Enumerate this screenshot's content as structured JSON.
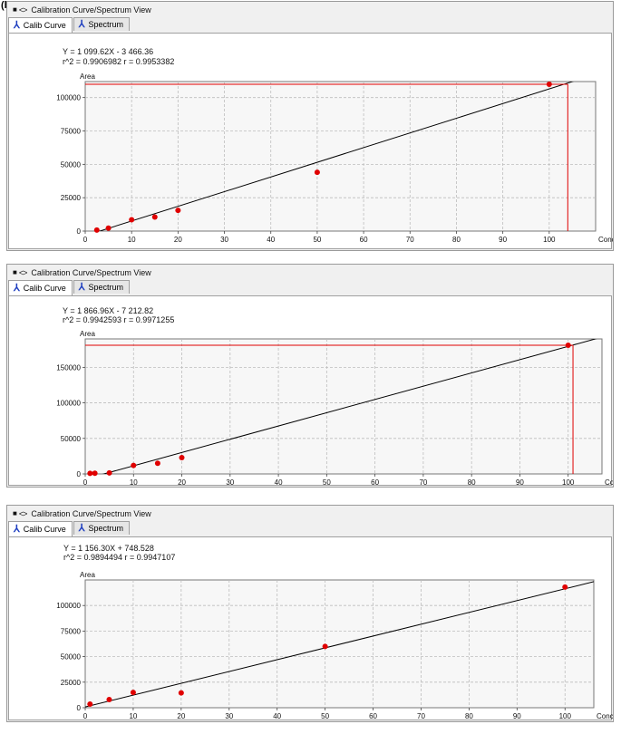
{
  "figure_label": "(b)",
  "panels": [
    {
      "window_title": "Calibration Curve/Spectrum View",
      "tabs": [
        {
          "label": "Calib Curve",
          "icon": "peak-icon",
          "active": true
        },
        {
          "label": "Spectrum",
          "icon": "peak-icon",
          "active": false
        }
      ],
      "equation": "Y = 1 099.62X - 3 466.36",
      "correlation": "r^2 = 0.9906982  r = 0.9953382",
      "chart_data": {
        "type": "scatter",
        "ylabel": "Area",
        "xlabel": "Conc.",
        "xlim": [
          0,
          110
        ],
        "ylim": [
          0,
          112000
        ],
        "xticks": [
          0,
          10,
          20,
          30,
          40,
          50,
          60,
          70,
          80,
          90,
          100
        ],
        "xtick_labels": [
          "0",
          "10",
          "20",
          "30",
          "40",
          "50",
          "60",
          "70",
          "80",
          "90",
          "100"
        ],
        "yticks": [
          0,
          25000,
          50000,
          75000,
          100000
        ],
        "ytick_labels": [
          "0",
          "25000",
          "50000",
          "75000",
          "100000"
        ],
        "points": [
          [
            2.5,
            800
          ],
          [
            5,
            2200
          ],
          [
            10,
            8500
          ],
          [
            15,
            10500
          ],
          [
            20,
            15500
          ],
          [
            50,
            44000
          ],
          [
            100,
            110000
          ]
        ],
        "line": [
          [
            0,
            -3466.36
          ],
          [
            110,
            117492
          ]
        ],
        "marker": {
          "x": 104,
          "y": 110000
        },
        "colors": {
          "points": "#e00000",
          "line": "#000000",
          "marker": "#e00000",
          "grid": "#bdbdbd"
        },
        "grid": true
      }
    },
    {
      "window_title": "Calibration Curve/Spectrum View",
      "tabs": [
        {
          "label": "Calib Curve",
          "icon": "peak-icon",
          "active": true
        },
        {
          "label": "Spectrum",
          "icon": "peak-icon",
          "active": false
        }
      ],
      "equation": "Y = 1 866.96X - 7 212.82",
      "correlation": "r^2 = 0.9942593  r = 0.9971255",
      "chart_data": {
        "type": "scatter",
        "ylabel": "Area",
        "xlabel": "Conc.",
        "xlim": [
          0,
          107
        ],
        "ylim": [
          0,
          190000
        ],
        "xticks": [
          0,
          10,
          20,
          30,
          40,
          50,
          60,
          70,
          80,
          90,
          100
        ],
        "xtick_labels": [
          "0",
          "10",
          "20",
          "30",
          "40",
          "50",
          "60",
          "70",
          "80",
          "90",
          "100"
        ],
        "yticks": [
          0,
          50000,
          100000,
          150000
        ],
        "ytick_labels": [
          "0",
          "50000",
          "100000",
          "150000"
        ],
        "points": [
          [
            1,
            800
          ],
          [
            2,
            1000
          ],
          [
            5,
            1500
          ],
          [
            10,
            12000
          ],
          [
            15,
            15000
          ],
          [
            20,
            23000
          ],
          [
            100,
            181000
          ]
        ],
        "line": [
          [
            0,
            -7212.82
          ],
          [
            107,
            192553
          ]
        ],
        "marker": {
          "x": 101,
          "y": 181000
        },
        "colors": {
          "points": "#e00000",
          "line": "#000000",
          "marker": "#e00000",
          "grid": "#bdbdbd"
        },
        "grid": true
      }
    },
    {
      "window_title": "Calibration Curve/Spectrum View",
      "tabs": [
        {
          "label": "Calib Curve",
          "icon": "peak-icon",
          "active": true
        },
        {
          "label": "Spectrum",
          "icon": "peak-icon",
          "active": false
        }
      ],
      "equation": "Y = 1 156.30X + 748.528",
      "correlation": "r^2 = 0.9894494  r = 0.9947107",
      "chart_data": {
        "type": "scatter",
        "ylabel": "Area",
        "xlabel": "Conc.",
        "xlim": [
          0,
          106
        ],
        "ylim": [
          0,
          125000
        ],
        "xticks": [
          0,
          10,
          20,
          30,
          40,
          50,
          60,
          70,
          80,
          90,
          100
        ],
        "xtick_labels": [
          "0",
          "10",
          "20",
          "30",
          "40",
          "50",
          "60",
          "70",
          "80",
          "90",
          "100"
        ],
        "yticks": [
          0,
          25000,
          50000,
          75000,
          100000
        ],
        "ytick_labels": [
          "0",
          "25000",
          "50000",
          "75000",
          "100000"
        ],
        "points": [
          [
            1,
            3500
          ],
          [
            5,
            8000
          ],
          [
            10,
            15000
          ],
          [
            20,
            14500
          ],
          [
            50,
            60000
          ],
          [
            100,
            118000
          ]
        ],
        "line": [
          [
            0,
            748.528
          ],
          [
            106,
            123316
          ]
        ],
        "marker": null,
        "colors": {
          "points": "#e00000",
          "line": "#000000",
          "marker": "#e00000",
          "grid": "#bdbdbd"
        },
        "grid": true
      }
    }
  ]
}
